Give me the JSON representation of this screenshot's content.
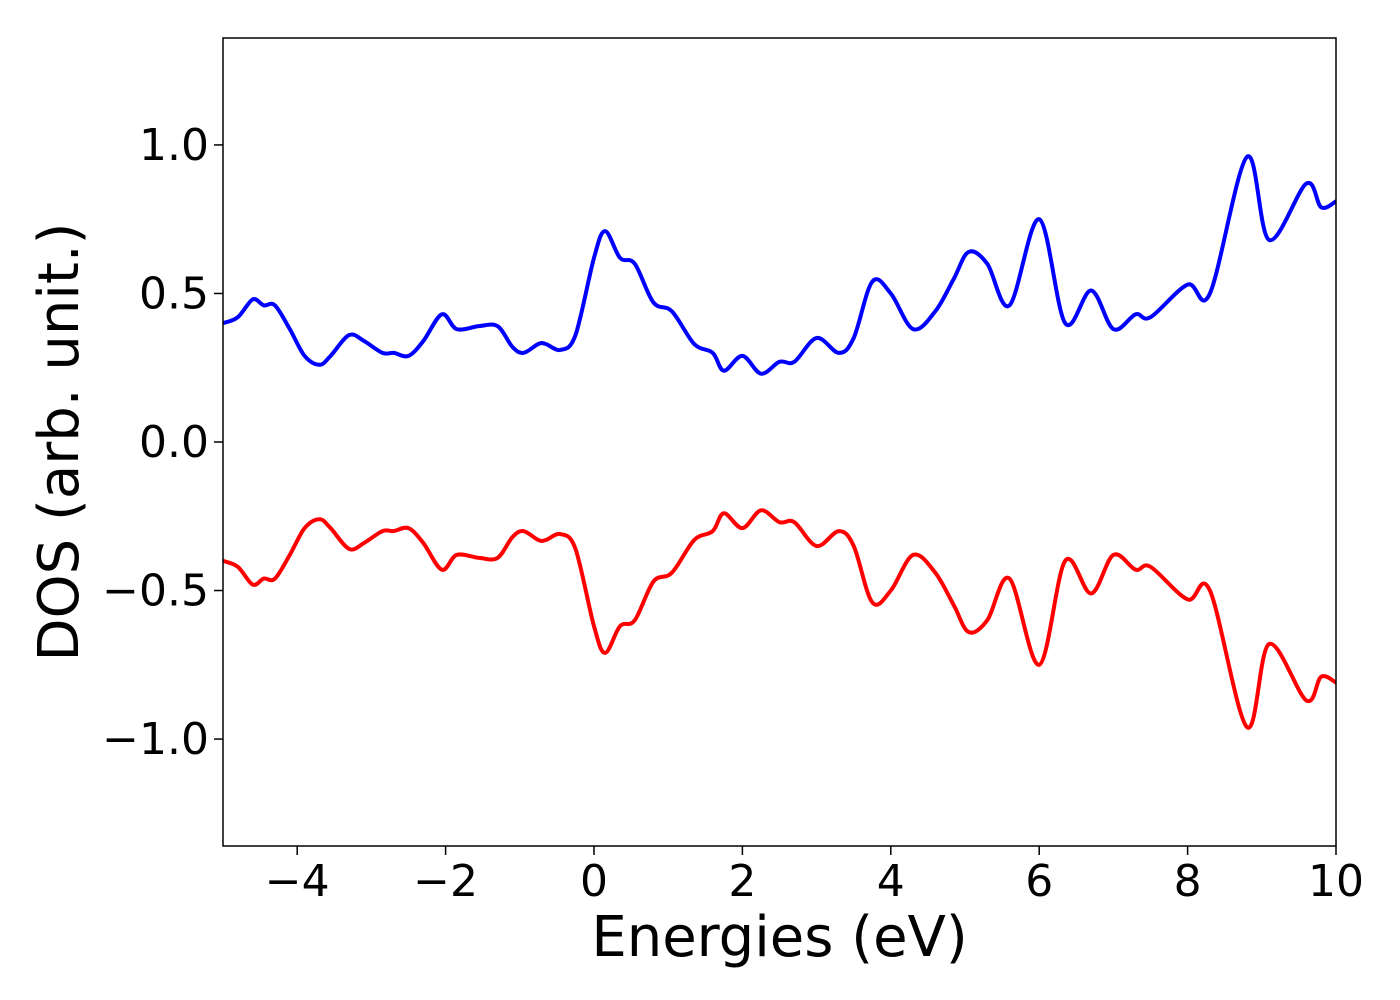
{
  "chart_data": {
    "type": "line",
    "xlabel": "Energies (eV)",
    "ylabel": "DOS (arb. unit.)",
    "xlim": [
      -5,
      10
    ],
    "ylim": [
      -1.36,
      1.36
    ],
    "xticks": [
      -4,
      -2,
      0,
      2,
      4,
      6,
      8,
      10
    ],
    "xtick_labels": [
      "−4",
      "−2",
      "0",
      "2",
      "4",
      "6",
      "8",
      "10"
    ],
    "yticks": [
      -1.0,
      -0.5,
      0.0,
      0.5,
      1.0
    ],
    "ytick_labels": [
      "−1.0",
      "−0.5",
      "0.0",
      "0.5",
      "1.0"
    ],
    "grid": false,
    "series": [
      {
        "color": "#0000ff",
        "x": [
          -5.0,
          -4.8,
          -4.6,
          -4.45,
          -4.3,
          -4.1,
          -3.9,
          -3.7,
          -3.55,
          -3.3,
          -3.1,
          -2.85,
          -2.7,
          -2.5,
          -2.3,
          -2.05,
          -1.85,
          -1.55,
          -1.3,
          -1.1,
          -0.95,
          -0.75,
          -0.65,
          -0.45,
          -0.25,
          0.0,
          0.15,
          0.35,
          0.55,
          0.8,
          1.05,
          1.35,
          1.6,
          1.75,
          2.0,
          2.25,
          2.5,
          2.7,
          3.0,
          3.3,
          3.5,
          3.75,
          4.0,
          4.3,
          4.6,
          4.85,
          5.05,
          5.3,
          5.6,
          6.0,
          6.35,
          6.7,
          7.0,
          7.3,
          7.5,
          8.0,
          8.3,
          8.8,
          9.1,
          9.6,
          9.8,
          10.0
        ],
        "y": [
          0.4,
          0.42,
          0.48,
          0.46,
          0.46,
          0.38,
          0.29,
          0.26,
          0.29,
          0.36,
          0.34,
          0.3,
          0.3,
          0.29,
          0.34,
          0.43,
          0.38,
          0.39,
          0.39,
          0.32,
          0.3,
          0.33,
          0.33,
          0.31,
          0.36,
          0.62,
          0.71,
          0.62,
          0.6,
          0.47,
          0.44,
          0.33,
          0.3,
          0.24,
          0.29,
          0.23,
          0.27,
          0.27,
          0.35,
          0.3,
          0.35,
          0.54,
          0.5,
          0.38,
          0.44,
          0.55,
          0.64,
          0.6,
          0.46,
          0.75,
          0.4,
          0.51,
          0.38,
          0.43,
          0.42,
          0.53,
          0.5,
          0.96,
          0.68,
          0.87,
          0.79,
          0.81
        ]
      },
      {
        "color": "#ff0000",
        "x": [
          -5.0,
          -4.8,
          -4.6,
          -4.45,
          -4.3,
          -4.1,
          -3.9,
          -3.7,
          -3.55,
          -3.3,
          -3.1,
          -2.85,
          -2.7,
          -2.5,
          -2.3,
          -2.05,
          -1.85,
          -1.55,
          -1.3,
          -1.1,
          -0.95,
          -0.75,
          -0.65,
          -0.45,
          -0.25,
          0.0,
          0.15,
          0.35,
          0.55,
          0.8,
          1.05,
          1.35,
          1.6,
          1.75,
          2.0,
          2.25,
          2.5,
          2.7,
          3.0,
          3.3,
          3.5,
          3.75,
          4.0,
          4.3,
          4.6,
          4.85,
          5.05,
          5.3,
          5.6,
          6.0,
          6.35,
          6.7,
          7.0,
          7.3,
          7.5,
          8.0,
          8.3,
          8.8,
          9.1,
          9.6,
          9.8,
          10.0
        ],
        "y": [
          -0.4,
          -0.42,
          -0.48,
          -0.46,
          -0.46,
          -0.38,
          -0.29,
          -0.26,
          -0.29,
          -0.36,
          -0.34,
          -0.3,
          -0.3,
          -0.29,
          -0.34,
          -0.43,
          -0.38,
          -0.39,
          -0.39,
          -0.32,
          -0.3,
          -0.33,
          -0.33,
          -0.31,
          -0.36,
          -0.62,
          -0.71,
          -0.62,
          -0.6,
          -0.47,
          -0.44,
          -0.33,
          -0.3,
          -0.24,
          -0.29,
          -0.23,
          -0.27,
          -0.27,
          -0.35,
          -0.3,
          -0.35,
          -0.54,
          -0.5,
          -0.38,
          -0.44,
          -0.55,
          -0.64,
          -0.6,
          -0.46,
          -0.75,
          -0.4,
          -0.51,
          -0.38,
          -0.43,
          -0.42,
          -0.53,
          -0.5,
          -0.96,
          -0.68,
          -0.87,
          -0.79,
          -0.81
        ]
      }
    ]
  }
}
